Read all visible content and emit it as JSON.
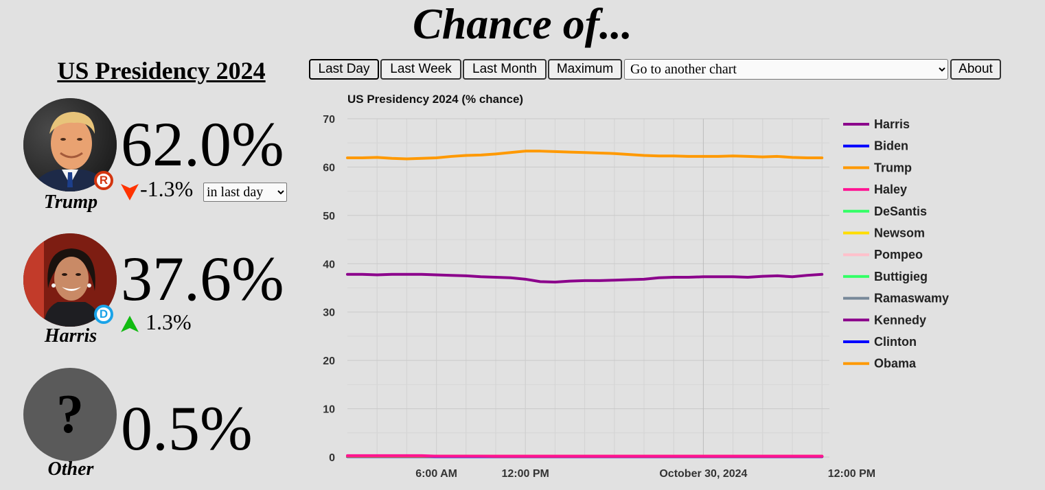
{
  "header": {
    "title": "Chance of..."
  },
  "market": {
    "title": "US Presidency 2024"
  },
  "toolbar": {
    "last_day": "Last Day",
    "last_week": "Last Week",
    "last_month": "Last Month",
    "maximum": "Maximum",
    "chart_select": "Go to another chart",
    "about": "About"
  },
  "candidates": [
    {
      "name": "Trump",
      "pct": "62.0%",
      "change": "-1.3%",
      "direction": "down",
      "party": "R",
      "party_color": "#d3350f",
      "arrow_color": "#ff3300"
    },
    {
      "name": "Harris",
      "pct": "37.6%",
      "change": "1.3%",
      "direction": "up",
      "party": "D",
      "party_color": "#1aa3e8",
      "arrow_color": "#11bb11"
    },
    {
      "name": "Other",
      "pct": "0.5%"
    }
  ],
  "change_period": {
    "selected": "in last day"
  },
  "chart_data": {
    "type": "line",
    "title": "US Presidency 2024 (% chance)",
    "xlabel": "",
    "ylabel": "",
    "ylim": [
      0,
      70
    ],
    "yticks": [
      0,
      10,
      20,
      30,
      40,
      50,
      60,
      70
    ],
    "x_range_hours": [
      0,
      32.5
    ],
    "xticks": [
      {
        "x": 6,
        "label": "6:00 AM"
      },
      {
        "x": 12,
        "label": "12:00 PM"
      },
      {
        "x": 24,
        "label": "October 30, 2024"
      },
      {
        "x": 36,
        "label": "12:00 PM"
      }
    ],
    "grid": true,
    "legend_position": "right",
    "x": [
      0,
      1,
      2,
      3,
      4,
      5,
      6,
      7,
      8,
      9,
      10,
      11,
      12,
      13,
      14,
      15,
      16,
      17,
      18,
      19,
      20,
      21,
      22,
      23,
      24,
      25,
      26,
      27,
      28,
      29,
      30,
      31,
      32
    ],
    "series": [
      {
        "name": "Harris",
        "color": "#8b008b",
        "values": [
          37.8,
          37.8,
          37.7,
          37.8,
          37.8,
          37.8,
          37.7,
          37.6,
          37.5,
          37.3,
          37.2,
          37.1,
          36.8,
          36.3,
          36.2,
          36.4,
          36.5,
          36.5,
          36.6,
          36.7,
          36.8,
          37.1,
          37.2,
          37.2,
          37.3,
          37.3,
          37.3,
          37.2,
          37.4,
          37.5,
          37.3,
          37.6,
          37.8
        ]
      },
      {
        "name": "Biden",
        "color": "#0000ff",
        "values": [
          0.2,
          0.2,
          0.2,
          0.2,
          0.2,
          0.2,
          0.1,
          0.1,
          0.1,
          0.1,
          0.1,
          0.1,
          0.1,
          0.1,
          0.1,
          0.1,
          0.1,
          0.1,
          0.1,
          0.1,
          0.1,
          0.1,
          0.1,
          0.1,
          0.1,
          0.1,
          0.1,
          0.1,
          0.1,
          0.1,
          0.1,
          0.1,
          0.1
        ]
      },
      {
        "name": "Trump",
        "color": "#ff9900",
        "values": [
          61.9,
          61.9,
          62.0,
          61.8,
          61.7,
          61.8,
          61.9,
          62.2,
          62.4,
          62.5,
          62.7,
          63.0,
          63.3,
          63.3,
          63.2,
          63.1,
          63.0,
          62.9,
          62.8,
          62.6,
          62.4,
          62.3,
          62.3,
          62.2,
          62.2,
          62.2,
          62.3,
          62.2,
          62.1,
          62.2,
          62.0,
          61.9,
          61.9
        ]
      },
      {
        "name": "Haley",
        "color": "#ff1493",
        "values": [
          0.3,
          0.3,
          0.3,
          0.3,
          0.3,
          0.3,
          0.2,
          0.2,
          0.2,
          0.2,
          0.2,
          0.2,
          0.2,
          0.2,
          0.2,
          0.2,
          0.2,
          0.2,
          0.2,
          0.2,
          0.2,
          0.2,
          0.2,
          0.2,
          0.2,
          0.2,
          0.2,
          0.2,
          0.2,
          0.2,
          0.2,
          0.2,
          0.2
        ]
      },
      {
        "name": "DeSantis",
        "color": "#33ff66",
        "values": [
          0.1,
          0.1,
          0.1,
          0.1,
          0.1,
          0.1,
          0.1,
          0.1,
          0.1,
          0.1,
          0.1,
          0.1,
          0.1,
          0.1,
          0.1,
          0.1,
          0.1,
          0.1,
          0.1,
          0.1,
          0.1,
          0.1,
          0.1,
          0.1,
          0.1,
          0.1,
          0.1,
          0.1,
          0.1,
          0.1,
          0.1,
          0.1,
          0.1
        ]
      },
      {
        "name": "Newsom",
        "color": "#ffdd00",
        "values": [
          0.1,
          0.1,
          0.1,
          0.1,
          0.1,
          0.1,
          0.1,
          0.1,
          0.1,
          0.1,
          0.1,
          0.1,
          0.1,
          0.1,
          0.1,
          0.1,
          0.1,
          0.1,
          0.1,
          0.1,
          0.1,
          0.1,
          0.1,
          0.1,
          0.1,
          0.1,
          0.1,
          0.1,
          0.1,
          0.1,
          0.1,
          0.1,
          0.1
        ]
      },
      {
        "name": "Pompeo",
        "color": "#ffc0cb",
        "values": [
          0.1,
          0.1,
          0.1,
          0.1,
          0.1,
          0.1,
          0.1,
          0.1,
          0.1,
          0.1,
          0.1,
          0.1,
          0.1,
          0.1,
          0.1,
          0.1,
          0.1,
          0.1,
          0.1,
          0.1,
          0.1,
          0.1,
          0.1,
          0.1,
          0.1,
          0.1,
          0.1,
          0.1,
          0.1,
          0.1,
          0.1,
          0.1,
          0.1
        ]
      },
      {
        "name": "Buttigieg",
        "color": "#33ff66",
        "values": [
          0.1,
          0.1,
          0.1,
          0.1,
          0.1,
          0.1,
          0.1,
          0.1,
          0.1,
          0.1,
          0.1,
          0.1,
          0.1,
          0.1,
          0.1,
          0.1,
          0.1,
          0.1,
          0.1,
          0.1,
          0.1,
          0.1,
          0.1,
          0.1,
          0.1,
          0.1,
          0.1,
          0.1,
          0.1,
          0.1,
          0.1,
          0.1,
          0.1
        ]
      },
      {
        "name": "Ramaswamy",
        "color": "#778899",
        "values": [
          0.1,
          0.1,
          0.1,
          0.1,
          0.1,
          0.1,
          0.1,
          0.1,
          0.1,
          0.1,
          0.1,
          0.1,
          0.1,
          0.1,
          0.1,
          0.1,
          0.1,
          0.1,
          0.1,
          0.1,
          0.1,
          0.1,
          0.1,
          0.1,
          0.1,
          0.1,
          0.1,
          0.1,
          0.1,
          0.1,
          0.1,
          0.1,
          0.1
        ]
      },
      {
        "name": "Kennedy",
        "color": "#8b008b",
        "values": [
          0.2,
          0.2,
          0.2,
          0.2,
          0.2,
          0.2,
          0.2,
          0.2,
          0.2,
          0.2,
          0.1,
          0.1,
          0.1,
          0.1,
          0.1,
          0.1,
          0.1,
          0.1,
          0.1,
          0.1,
          0.1,
          0.1,
          0.1,
          0.1,
          0.1,
          0.1,
          0.1,
          0.1,
          0.1,
          0.1,
          0.1,
          0.1,
          0.1
        ]
      },
      {
        "name": "Clinton",
        "color": "#0000ff",
        "values": [
          0.1,
          0.1,
          0.1,
          0.1,
          0.1,
          0.1,
          0.1,
          0.1,
          0.1,
          0.1,
          0.1,
          0.1,
          0.1,
          0.1,
          0.1,
          0.1,
          0.1,
          0.1,
          0.1,
          0.1,
          0.1,
          0.1,
          0.1,
          0.1,
          0.1,
          0.1,
          0.1,
          0.1,
          0.1,
          0.1,
          0.1,
          0.1,
          0.1
        ]
      },
      {
        "name": "Obama",
        "color": "#ff9900",
        "values": [
          0.2,
          0.2,
          0.2,
          0.2,
          0.2,
          0.2,
          0.2,
          0.2,
          0.2,
          0.2,
          0.2,
          0.2,
          0.2,
          0.2,
          0.2,
          0.2,
          0.2,
          0.2,
          0.2,
          0.2,
          0.2,
          0.2,
          0.2,
          0.2,
          0.2,
          0.2,
          0.2,
          0.2,
          0.2,
          0.2,
          0.2,
          0.2,
          0.2
        ]
      }
    ]
  }
}
